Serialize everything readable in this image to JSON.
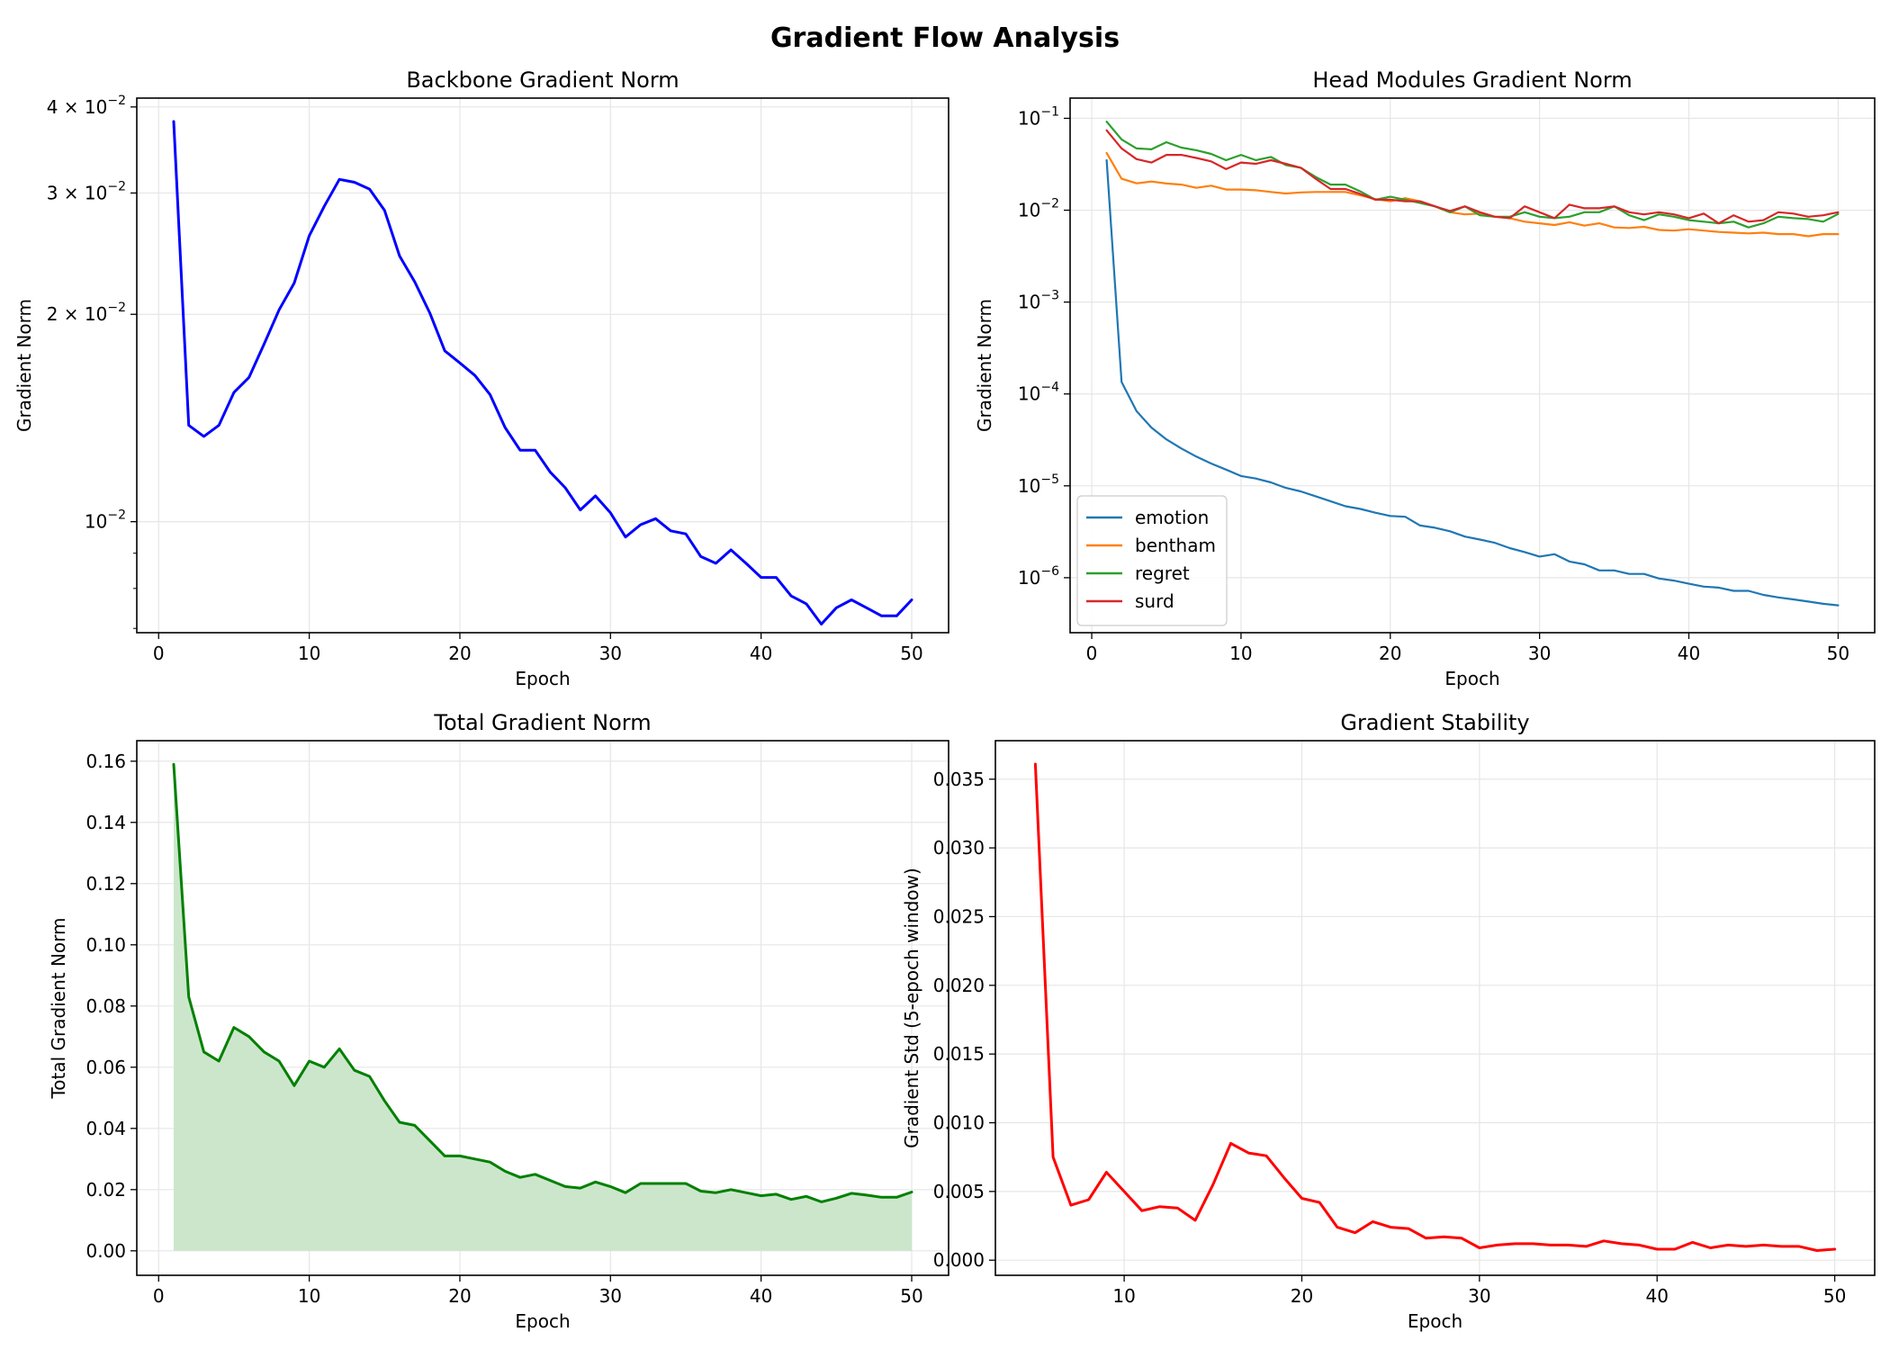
{
  "figure": {
    "suptitle": "Gradient Flow Analysis",
    "colors": {
      "blue": "#0000ff",
      "green": "#008000",
      "red": "#ff0000",
      "fill_green": "#cce6cc",
      "emotion": "#1f77b4",
      "bentham": "#ff7f0e",
      "regret": "#2ca02c",
      "surd": "#d62728"
    }
  },
  "chart_data": [
    {
      "id": "backbone",
      "type": "line",
      "title": "Backbone Gradient Norm",
      "xlabel": "Epoch",
      "ylabel": "Gradient Norm",
      "yscale": "log",
      "grid": true,
      "xlim": [
        -1.45,
        52.45
      ],
      "ylim": [
        0.0069,
        0.0412
      ],
      "xticks": [
        0,
        10,
        20,
        30,
        40,
        50
      ],
      "xtick_labels": [
        "0",
        "10",
        "20",
        "30",
        "40",
        "50"
      ],
      "yticks": [
        0.04,
        0.03,
        0.02,
        0.01
      ],
      "ytick_labels": [
        {
          "base": "4 × 10",
          "exp": "−2"
        },
        {
          "base": "3 × 10",
          "exp": "−2"
        },
        {
          "base": "2 × 10",
          "exp": "−2"
        },
        {
          "base": "10",
          "exp": "−2"
        }
      ],
      "minor_yticks": [
        0.009,
        0.008,
        0.007
      ],
      "series": [
        {
          "color": "#0000ff",
          "linewidth": 3,
          "x": [
            1,
            2,
            3,
            4,
            5,
            6,
            7,
            8,
            9,
            10,
            11,
            12,
            13,
            14,
            15,
            16,
            17,
            18,
            19,
            20,
            21,
            22,
            23,
            24,
            25,
            26,
            27,
            28,
            29,
            30,
            31,
            32,
            33,
            34,
            35,
            36,
            37,
            38,
            39,
            40,
            41,
            42,
            43,
            44,
            45,
            46,
            47,
            48,
            49,
            50
          ],
          "y": [
            0.0381,
            0.0138,
            0.0133,
            0.0138,
            0.0154,
            0.0162,
            0.0181,
            0.0203,
            0.0222,
            0.026,
            0.0287,
            0.0314,
            0.0311,
            0.0304,
            0.0283,
            0.0243,
            0.0223,
            0.0201,
            0.0177,
            0.017,
            0.0163,
            0.0153,
            0.0137,
            0.0127,
            0.0127,
            0.0118,
            0.0112,
            0.0104,
            0.0109,
            0.0103,
            0.0095,
            0.0099,
            0.0101,
            0.0097,
            0.0096,
            0.0089,
            0.0087,
            0.0091,
            0.0087,
            0.0083,
            0.0083,
            0.0078,
            0.0076,
            0.0071,
            0.0075,
            0.0077,
            0.0075,
            0.0073,
            0.0073,
            0.0077
          ]
        }
      ]
    },
    {
      "id": "heads",
      "type": "line",
      "title": "Head Modules Gradient Norm",
      "xlabel": "Epoch",
      "ylabel": "Gradient Norm",
      "yscale": "log",
      "grid": true,
      "legend": "lower-left",
      "xlim": [
        -1.45,
        52.45
      ],
      "ylim": [
        2.52e-07,
        0.166
      ],
      "xticks": [
        0,
        10,
        20,
        30,
        40,
        50
      ],
      "xtick_labels": [
        "0",
        "10",
        "20",
        "30",
        "40",
        "50"
      ],
      "yticks": [
        0.1,
        0.01,
        0.001,
        0.0001,
        1e-05,
        1e-06
      ],
      "ytick_labels": [
        {
          "base": "10",
          "exp": "−1"
        },
        {
          "base": "10",
          "exp": "−2"
        },
        {
          "base": "10",
          "exp": "−3"
        },
        {
          "base": "10",
          "exp": "−4"
        },
        {
          "base": "10",
          "exp": "−5"
        },
        {
          "base": "10",
          "exp": "−6"
        }
      ],
      "series": [
        {
          "name": "emotion",
          "color": "#1f77b4",
          "linewidth": 2.2,
          "x": [
            1,
            2,
            3,
            4,
            5,
            6,
            7,
            8,
            9,
            10,
            11,
            12,
            13,
            14,
            15,
            16,
            17,
            18,
            19,
            20,
            21,
            22,
            23,
            24,
            25,
            26,
            27,
            28,
            29,
            30,
            31,
            32,
            33,
            34,
            35,
            36,
            37,
            38,
            39,
            40,
            41,
            42,
            43,
            44,
            45,
            46,
            47,
            48,
            49,
            50
          ],
          "y": [
            0.035,
            0.000135,
            6.5e-05,
            4.3e-05,
            3.2e-05,
            2.55e-05,
            2.08e-05,
            1.75e-05,
            1.5e-05,
            1.28e-05,
            1.2e-05,
            1.09e-05,
            9.5e-06,
            8.7e-06,
            7.7e-06,
            6.8e-06,
            6e-06,
            5.6e-06,
            5.1e-06,
            4.7e-06,
            4.6e-06,
            3.7e-06,
            3.5e-06,
            3.2e-06,
            2.8e-06,
            2.6e-06,
            2.4e-06,
            2.1e-06,
            1.9e-06,
            1.7e-06,
            1.8e-06,
            1.5e-06,
            1.4e-06,
            1.2e-06,
            1.2e-06,
            1.1e-06,
            1.1e-06,
            9.8e-07,
            9.3e-07,
            8.6e-07,
            8e-07,
            7.8e-07,
            7.2e-07,
            7.2e-07,
            6.5e-07,
            6.1e-07,
            5.8e-07,
            5.5e-07,
            5.2e-07,
            5e-07
          ]
        },
        {
          "name": "bentham",
          "color": "#ff7f0e",
          "linewidth": 2.2,
          "x": [
            1,
            2,
            3,
            4,
            5,
            6,
            7,
            8,
            9,
            10,
            11,
            12,
            13,
            14,
            15,
            16,
            17,
            18,
            19,
            20,
            21,
            22,
            23,
            24,
            25,
            26,
            27,
            28,
            29,
            30,
            31,
            32,
            33,
            34,
            35,
            36,
            37,
            38,
            39,
            40,
            41,
            42,
            43,
            44,
            45,
            46,
            47,
            48,
            49,
            50
          ],
          "y": [
            0.042,
            0.022,
            0.0196,
            0.0205,
            0.0195,
            0.019,
            0.0175,
            0.0185,
            0.0168,
            0.0168,
            0.0165,
            0.0158,
            0.0152,
            0.0156,
            0.0158,
            0.0158,
            0.0158,
            0.0145,
            0.0132,
            0.0125,
            0.0135,
            0.0125,
            0.011,
            0.0095,
            0.009,
            0.0092,
            0.0085,
            0.0082,
            0.0075,
            0.0072,
            0.0069,
            0.0074,
            0.0068,
            0.0072,
            0.0065,
            0.0064,
            0.0066,
            0.0061,
            0.006,
            0.0062,
            0.006,
            0.0058,
            0.0057,
            0.0056,
            0.0057,
            0.0055,
            0.0055,
            0.0052,
            0.0055,
            0.0055
          ]
        },
        {
          "name": "regret",
          "color": "#2ca02c",
          "linewidth": 2.2,
          "x": [
            1,
            2,
            3,
            4,
            5,
            6,
            7,
            8,
            9,
            10,
            11,
            12,
            13,
            14,
            15,
            16,
            17,
            18,
            19,
            20,
            21,
            22,
            23,
            24,
            25,
            26,
            27,
            28,
            29,
            30,
            31,
            32,
            33,
            34,
            35,
            36,
            37,
            38,
            39,
            40,
            41,
            42,
            43,
            44,
            45,
            46,
            47,
            48,
            49,
            50
          ],
          "y": [
            0.092,
            0.059,
            0.047,
            0.046,
            0.055,
            0.048,
            0.045,
            0.041,
            0.035,
            0.04,
            0.035,
            0.038,
            0.031,
            0.029,
            0.023,
            0.019,
            0.019,
            0.016,
            0.013,
            0.014,
            0.013,
            0.012,
            0.011,
            0.0095,
            0.011,
            0.0088,
            0.0085,
            0.0085,
            0.0095,
            0.0085,
            0.0082,
            0.0085,
            0.0095,
            0.0095,
            0.011,
            0.0088,
            0.0078,
            0.009,
            0.0085,
            0.0078,
            0.0075,
            0.0072,
            0.0075,
            0.0065,
            0.0072,
            0.0085,
            0.0082,
            0.008,
            0.0075,
            0.0091
          ]
        },
        {
          "name": "surd",
          "color": "#d62728",
          "linewidth": 2.2,
          "x": [
            1,
            2,
            3,
            4,
            5,
            6,
            7,
            8,
            9,
            10,
            11,
            12,
            13,
            14,
            15,
            16,
            17,
            18,
            19,
            20,
            21,
            22,
            23,
            24,
            25,
            26,
            27,
            28,
            29,
            30,
            31,
            32,
            33,
            34,
            35,
            36,
            37,
            38,
            39,
            40,
            41,
            42,
            43,
            44,
            45,
            46,
            47,
            48,
            49,
            50
          ],
          "y": [
            0.074,
            0.047,
            0.036,
            0.033,
            0.04,
            0.04,
            0.037,
            0.034,
            0.028,
            0.033,
            0.032,
            0.035,
            0.032,
            0.029,
            0.022,
            0.017,
            0.017,
            0.015,
            0.013,
            0.013,
            0.0125,
            0.0125,
            0.011,
            0.0098,
            0.011,
            0.0095,
            0.0085,
            0.0082,
            0.011,
            0.0095,
            0.0082,
            0.0115,
            0.0105,
            0.0105,
            0.011,
            0.0095,
            0.009,
            0.0095,
            0.009,
            0.0082,
            0.0092,
            0.0072,
            0.0088,
            0.0075,
            0.0078,
            0.0095,
            0.0092,
            0.0085,
            0.0088,
            0.0095
          ]
        }
      ]
    },
    {
      "id": "total",
      "type": "area",
      "title": "Total Gradient Norm",
      "xlabel": "Epoch",
      "ylabel": "Total Gradient Norm",
      "grid": true,
      "xlim": [
        -1.45,
        52.45
      ],
      "ylim": [
        -0.008,
        0.1667
      ],
      "xticks": [
        0,
        10,
        20,
        30,
        40,
        50
      ],
      "xtick_labels": [
        "0",
        "10",
        "20",
        "30",
        "40",
        "50"
      ],
      "yticks": [
        0.0,
        0.02,
        0.04,
        0.06,
        0.08,
        0.1,
        0.12,
        0.14,
        0.16
      ],
      "ytick_labels": [
        "0.00",
        "0.02",
        "0.04",
        "0.06",
        "0.08",
        "0.10",
        "0.12",
        "0.14",
        "0.16"
      ],
      "series": [
        {
          "color": "#008000",
          "fill": "#cce6cc",
          "linewidth": 3,
          "x": [
            1,
            2,
            3,
            4,
            5,
            6,
            7,
            8,
            9,
            10,
            11,
            12,
            13,
            14,
            15,
            16,
            17,
            18,
            19,
            20,
            21,
            22,
            23,
            24,
            25,
            26,
            27,
            28,
            29,
            30,
            31,
            32,
            33,
            34,
            35,
            36,
            37,
            38,
            39,
            40,
            41,
            42,
            43,
            44,
            45,
            46,
            47,
            48,
            49,
            50
          ],
          "y": [
            0.159,
            0.083,
            0.065,
            0.062,
            0.073,
            0.07,
            0.065,
            0.062,
            0.054,
            0.062,
            0.06,
            0.066,
            0.059,
            0.057,
            0.049,
            0.042,
            0.041,
            0.036,
            0.031,
            0.031,
            0.03,
            0.029,
            0.026,
            0.024,
            0.025,
            0.023,
            0.021,
            0.0205,
            0.0225,
            0.021,
            0.019,
            0.022,
            0.022,
            0.022,
            0.022,
            0.0195,
            0.019,
            0.02,
            0.019,
            0.018,
            0.0185,
            0.0168,
            0.0178,
            0.016,
            0.0172,
            0.0188,
            0.0182,
            0.0175,
            0.0175,
            0.0192
          ]
        }
      ]
    },
    {
      "id": "stability",
      "type": "line",
      "title": "Gradient Stability",
      "xlabel": "Epoch",
      "ylabel": "Gradient Std (5-epoch window)",
      "grid": true,
      "xlim": [
        2.75,
        52.25
      ],
      "ylim": [
        -0.0011,
        0.0378
      ],
      "xticks": [
        10,
        20,
        30,
        40,
        50
      ],
      "xtick_labels": [
        "10",
        "20",
        "30",
        "40",
        "50"
      ],
      "yticks": [
        0.0,
        0.005,
        0.01,
        0.015,
        0.02,
        0.025,
        0.03,
        0.035
      ],
      "ytick_labels": [
        "0.000",
        "0.005",
        "0.010",
        "0.015",
        "0.020",
        "0.025",
        "0.030",
        "0.035"
      ],
      "series": [
        {
          "color": "#ff0000",
          "linewidth": 3,
          "x": [
            5,
            6,
            7,
            8,
            9,
            10,
            11,
            12,
            13,
            14,
            15,
            16,
            17,
            18,
            19,
            20,
            21,
            22,
            23,
            24,
            25,
            26,
            27,
            28,
            29,
            30,
            31,
            32,
            33,
            34,
            35,
            36,
            37,
            38,
            39,
            40,
            41,
            42,
            43,
            44,
            45,
            46,
            47,
            48,
            49,
            50
          ],
          "y": [
            0.0361,
            0.0075,
            0.004,
            0.0044,
            0.0064,
            0.005,
            0.0036,
            0.0039,
            0.0038,
            0.0029,
            0.0055,
            0.0085,
            0.0078,
            0.0076,
            0.006,
            0.0045,
            0.0042,
            0.0024,
            0.002,
            0.0028,
            0.0024,
            0.0023,
            0.0016,
            0.0017,
            0.0016,
            0.0009,
            0.0011,
            0.0012,
            0.0012,
            0.0011,
            0.0011,
            0.001,
            0.0014,
            0.0012,
            0.0011,
            0.0008,
            0.0008,
            0.0013,
            0.0009,
            0.0011,
            0.001,
            0.0011,
            0.001,
            0.001,
            0.0007,
            0.0008
          ]
        }
      ]
    }
  ]
}
